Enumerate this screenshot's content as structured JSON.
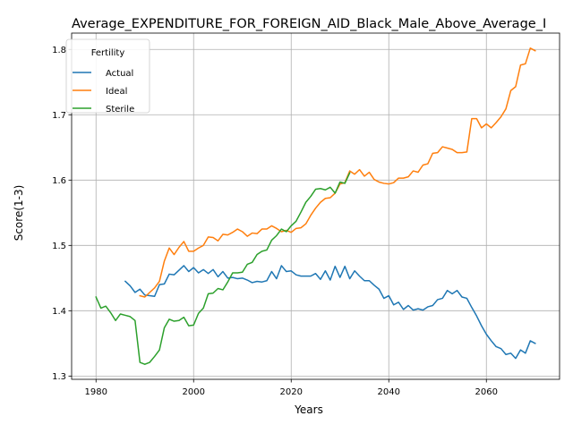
{
  "chart_data": {
    "type": "line",
    "title": "Average_EXPENDITURE_FOR_FOREIGN_AID_Black_Male_Above_Average_I",
    "xlabel": "Years",
    "ylabel": "Score(1-3)",
    "xlim": [
      1975,
      2075
    ],
    "ylim": [
      1.295,
      1.825
    ],
    "xticks": [
      1980,
      2000,
      2020,
      2040,
      2060
    ],
    "yticks": [
      1.3,
      1.4,
      1.5,
      1.6,
      1.7,
      1.8
    ],
    "grid": true,
    "legend": {
      "title": "Fertility",
      "placement": "top-left"
    },
    "series": [
      {
        "name": "Actual",
        "color": "#1f77b4",
        "x": [
          1986,
          1987,
          1988,
          1989,
          1990,
          1991,
          1992,
          1993,
          1994,
          1995,
          1996,
          1997,
          1998,
          1999,
          2000,
          2001,
          2002,
          2003,
          2004,
          2005,
          2006,
          2007,
          2008,
          2009,
          2010,
          2011,
          2012,
          2013,
          2014,
          2015,
          2016,
          2017,
          2018,
          2019,
          2020,
          2021,
          2022,
          2023,
          2024,
          2025,
          2026,
          2027,
          2028,
          2029,
          2030,
          2031,
          2032,
          2033,
          2034,
          2035,
          2036,
          2037,
          2038,
          2039,
          2040,
          2041,
          2042,
          2043,
          2044,
          2045,
          2046,
          2047,
          2048,
          2049,
          2050,
          2051,
          2052,
          2053,
          2054,
          2055,
          2056,
          2057,
          2058,
          2059,
          2060,
          2061,
          2062,
          2063,
          2064,
          2065,
          2066,
          2067,
          2068,
          2069,
          2070
        ],
        "values": [
          1.445,
          1.438,
          1.428,
          1.433,
          1.424,
          1.423,
          1.422,
          1.44,
          1.441,
          1.456,
          1.455,
          1.462,
          1.469,
          1.46,
          1.466,
          1.458,
          1.463,
          1.457,
          1.463,
          1.452,
          1.46,
          1.45,
          1.451,
          1.449,
          1.45,
          1.447,
          1.443,
          1.445,
          1.444,
          1.446,
          1.46,
          1.449,
          1.469,
          1.46,
          1.461,
          1.455,
          1.453,
          1.453,
          1.453,
          1.457,
          1.448,
          1.461,
          1.447,
          1.468,
          1.451,
          1.468,
          1.449,
          1.461,
          1.453,
          1.446,
          1.446,
          1.439,
          1.433,
          1.419,
          1.423,
          1.409,
          1.413,
          1.402,
          1.408,
          1.401,
          1.403,
          1.401,
          1.406,
          1.408,
          1.417,
          1.419,
          1.431,
          1.426,
          1.431,
          1.421,
          1.419,
          1.405,
          1.392,
          1.377,
          1.364,
          1.354,
          1.345,
          1.342,
          1.333,
          1.335,
          1.327,
          1.34,
          1.335,
          1.354,
          1.35
        ]
      },
      {
        "name": "Ideal",
        "color": "#ff7f0e",
        "x": [
          1989,
          1990,
          1991,
          1992,
          1993,
          1994,
          1995,
          1996,
          1997,
          1998,
          1999,
          2000,
          2001,
          2002,
          2003,
          2004,
          2005,
          2006,
          2007,
          2008,
          2009,
          2010,
          2011,
          2012,
          2013,
          2014,
          2015,
          2016,
          2017,
          2018,
          2019,
          2020,
          2021,
          2022,
          2023,
          2024,
          2025,
          2026,
          2027,
          2028,
          2029,
          2030,
          2031,
          2032,
          2033,
          2034,
          2035,
          2036,
          2037,
          2038,
          2039,
          2040,
          2041,
          2042,
          2043,
          2044,
          2045,
          2046,
          2047,
          2048,
          2049,
          2050,
          2051,
          2052,
          2053,
          2054,
          2055,
          2056,
          2057,
          2058,
          2059,
          2060,
          2061,
          2062,
          2063,
          2064,
          2065,
          2066,
          2067,
          2068,
          2069,
          2070
        ],
        "values": [
          1.423,
          1.421,
          1.428,
          1.435,
          1.445,
          1.476,
          1.496,
          1.486,
          1.497,
          1.506,
          1.491,
          1.491,
          1.496,
          1.5,
          1.513,
          1.512,
          1.507,
          1.517,
          1.516,
          1.52,
          1.525,
          1.521,
          1.514,
          1.519,
          1.518,
          1.525,
          1.525,
          1.53,
          1.526,
          1.521,
          1.523,
          1.52,
          1.526,
          1.527,
          1.533,
          1.546,
          1.557,
          1.566,
          1.572,
          1.573,
          1.58,
          1.594,
          1.596,
          1.614,
          1.609,
          1.616,
          1.606,
          1.612,
          1.601,
          1.597,
          1.595,
          1.594,
          1.596,
          1.603,
          1.603,
          1.605,
          1.614,
          1.612,
          1.623,
          1.625,
          1.641,
          1.642,
          1.651,
          1.649,
          1.647,
          1.642,
          1.642,
          1.643,
          1.694,
          1.694,
          1.68,
          1.686,
          1.68,
          1.688,
          1.697,
          1.709,
          1.737,
          1.743,
          1.776,
          1.778,
          1.802,
          1.798
        ]
      },
      {
        "name": "Sterile",
        "color": "#2ca02c",
        "x": [
          1980,
          1981,
          1982,
          1983,
          1984,
          1985,
          1986,
          1987,
          1988,
          1989,
          1990,
          1991,
          1992,
          1993,
          1994,
          1995,
          1996,
          1997,
          1998,
          1999,
          2000,
          2001,
          2002,
          2003,
          2004,
          2005,
          2006,
          2007,
          2008,
          2009,
          2010,
          2011,
          2012,
          2013,
          2014,
          2015,
          2016,
          2017,
          2018,
          2019,
          2020,
          2021,
          2022,
          2023,
          2024,
          2025,
          2026,
          2027,
          2028,
          2029,
          2030,
          2031,
          2032
        ],
        "values": [
          1.421,
          1.404,
          1.407,
          1.397,
          1.385,
          1.395,
          1.393,
          1.391,
          1.385,
          1.321,
          1.318,
          1.321,
          1.33,
          1.34,
          1.374,
          1.387,
          1.384,
          1.385,
          1.39,
          1.377,
          1.378,
          1.396,
          1.404,
          1.426,
          1.427,
          1.434,
          1.432,
          1.444,
          1.458,
          1.458,
          1.459,
          1.471,
          1.474,
          1.486,
          1.491,
          1.493,
          1.508,
          1.515,
          1.525,
          1.521,
          1.53,
          1.537,
          1.551,
          1.566,
          1.575,
          1.586,
          1.587,
          1.585,
          1.589,
          1.58,
          1.597,
          1.595,
          1.611
        ]
      }
    ]
  }
}
